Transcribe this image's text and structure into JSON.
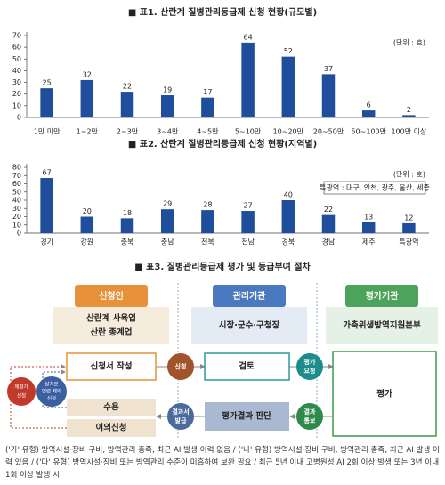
{
  "chart_data": [
    {
      "type": "bar",
      "title": "■ 표1. 산란계 질병관리등급제 신청 현황(규모별)",
      "unit_label": "(단위 : 호)",
      "categories": [
        "1만 미만",
        "1~2만",
        "2~3만",
        "3~4만",
        "4~5만",
        "5~10만",
        "10~20만",
        "20~50만",
        "50~100만",
        "100만 이상"
      ],
      "values": [
        25,
        32,
        22,
        19,
        17,
        64,
        52,
        37,
        6,
        2
      ],
      "color": "#1f4e9c",
      "ylim": [
        0,
        70
      ],
      "yticks": [
        0,
        10,
        20,
        30,
        40,
        50,
        60,
        70
      ],
      "grid": false
    },
    {
      "type": "bar",
      "title": "■ 표2. 산란계 질병관리등급제 신청 현황(지역별)",
      "unit_label": "(단위 : 호)",
      "note": "특광역 : 대구, 인천, 광주, 울산, 세종",
      "categories": [
        "경기",
        "강원",
        "충북",
        "충남",
        "전북",
        "전남",
        "경북",
        "경남",
        "제주",
        "특광역"
      ],
      "values": [
        67,
        20,
        18,
        29,
        28,
        27,
        40,
        22,
        13,
        12
      ],
      "color": "#1f4e9c",
      "ylim": [
        0,
        80
      ],
      "yticks": [
        0,
        10,
        20,
        30,
        40,
        50,
        60,
        70,
        80
      ],
      "grid": false
    }
  ],
  "diagram": {
    "title": "■ 표3. 질병관리등급제 평가 및 등급부여 절차",
    "columns": [
      {
        "header": "신청인",
        "body": [
          "산란계 사육업",
          "산란 종계업"
        ]
      },
      {
        "header": "관리기관",
        "body": [
          "시장·군수·구청장"
        ]
      },
      {
        "header": "평가기관",
        "body": [
          "가축위생방역지원본부"
        ]
      }
    ],
    "steps": {
      "apply": "신청서 작성",
      "review": "검토",
      "evaluate": "평가",
      "judge": "평가결과 판단",
      "accept": "수용",
      "objection": "이의신청"
    },
    "circles": {
      "submit": [
        "신청"
      ],
      "request": [
        "평가",
        "요청"
      ],
      "issue": [
        "결과서",
        "발급"
      ],
      "notify": [
        "결과",
        "통보"
      ],
      "reeval": [
        "재평가",
        "신청"
      ],
      "exclude": [
        "살처분",
        "명령 제외",
        "신청"
      ]
    }
  },
  "footnote": "('가' 유형) 방역시설·장비 구비, 방역관리 충족, 최근 AI 발생 이력 없음 / ('나' 유형) 방역시설·장비 구비, 방역관리 충족, 최근 AI 발생 이력 있음 / ('다' 유형) 방역시설·장비 또는 방역관리 수준이 미흡하여 보완 필요 / 최근 5년 이내 고병원성 AI 2회 이상 발생 또는 3년 이내 1회 이상 발생 시"
}
